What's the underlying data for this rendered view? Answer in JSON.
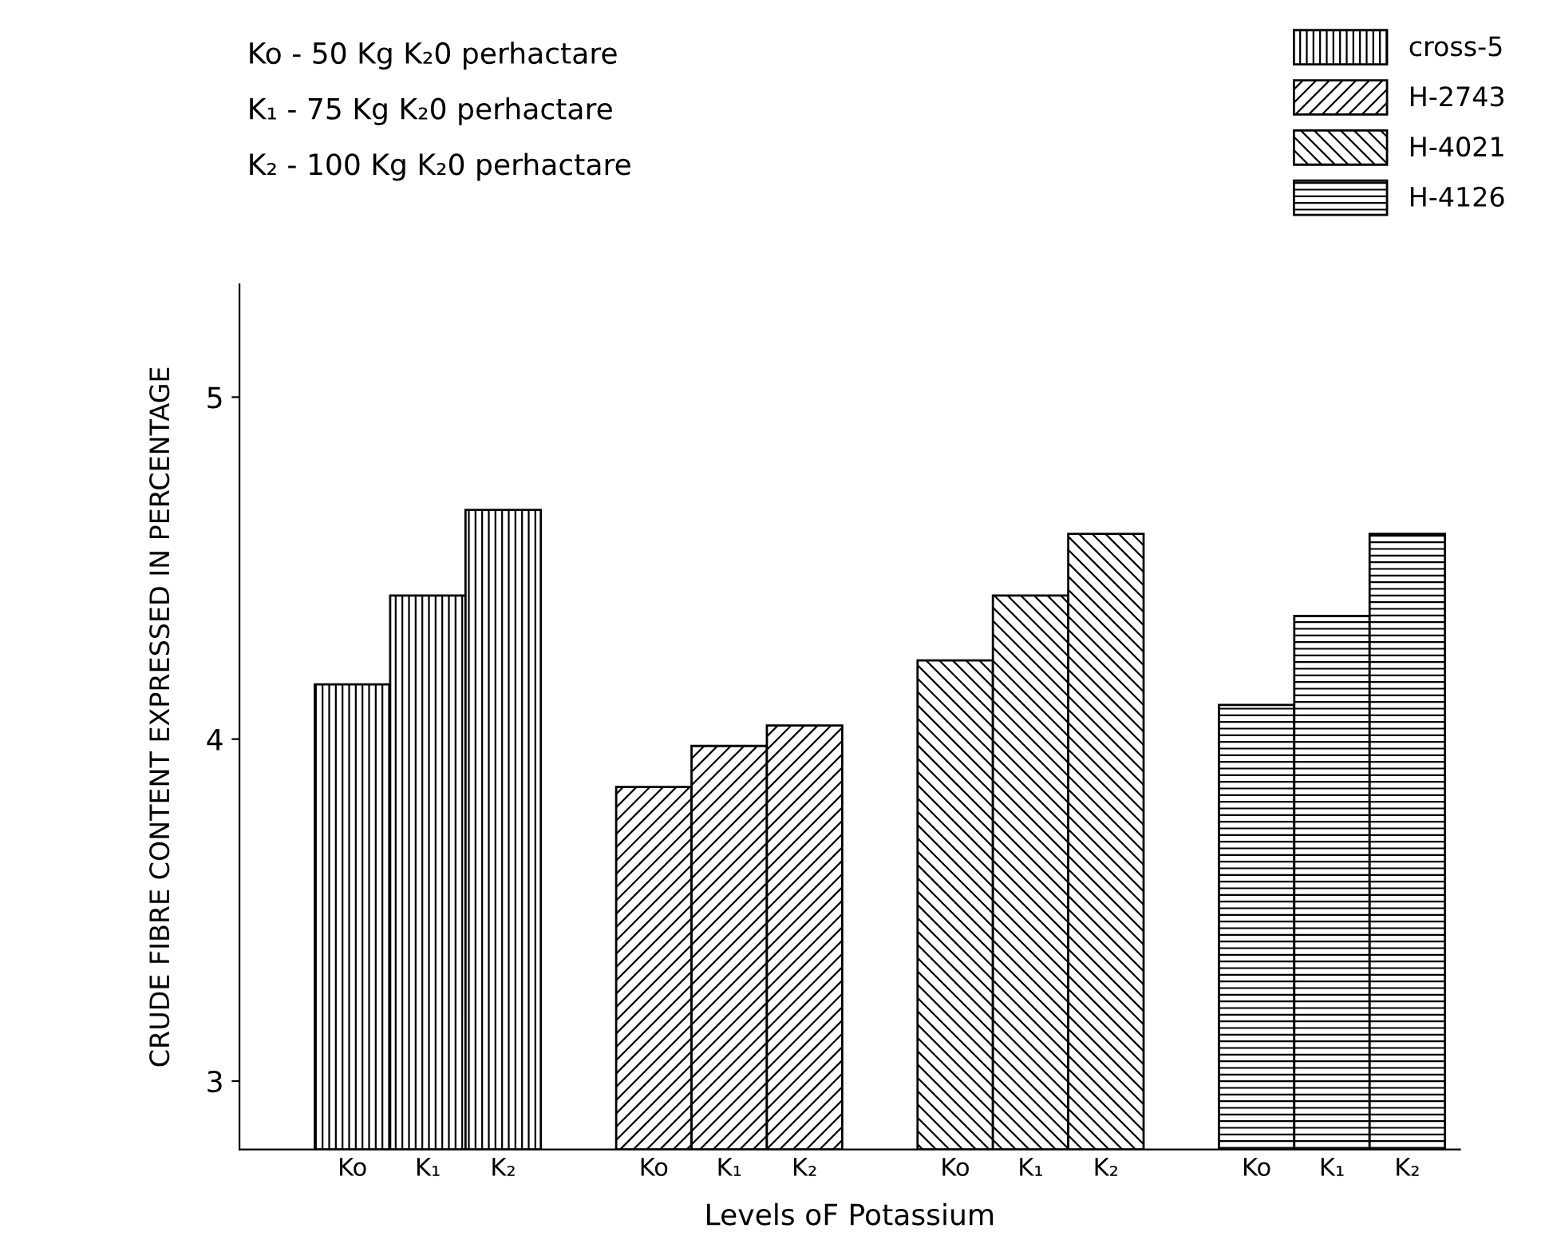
{
  "chart_data": {
    "type": "bar",
    "categories": [
      "Ko",
      "K₁",
      "K₂",
      null,
      "Ko",
      "K₁",
      "K₂",
      null,
      "Ko",
      "K₁",
      "K₂",
      null,
      "Ko",
      "K₁",
      "K₂"
    ],
    "series": [
      {
        "name": "cross-5",
        "color": "#000000",
        "values": [
          4.16,
          4.42,
          4.67,
          null,
          null,
          null,
          null,
          null,
          null,
          null,
          null,
          null,
          null,
          null,
          null
        ]
      },
      {
        "name": "H-2743",
        "color": "#000000",
        "values": [
          null,
          null,
          null,
          null,
          3.86,
          3.98,
          4.04,
          null,
          null,
          null,
          null,
          null,
          null,
          null,
          null
        ]
      },
      {
        "name": "H-4021",
        "color": "#000000",
        "values": [
          null,
          null,
          null,
          null,
          null,
          null,
          null,
          null,
          4.23,
          4.42,
          4.6,
          null,
          null,
          null,
          null
        ]
      },
      {
        "name": "H-4126",
        "color": "#000000",
        "values": [
          null,
          null,
          null,
          null,
          null,
          null,
          null,
          null,
          null,
          null,
          null,
          null,
          4.1,
          4.36,
          4.6
        ]
      }
    ],
    "ylim": [
      2.8,
      5.33
    ],
    "yticks": [
      3,
      4,
      5
    ],
    "xlabel": "Levels oF Potassium",
    "ylabel": "CRUDE FIBRE CONTENT EXPRESSED IN PERCENTAGE",
    "annotations": [
      "Ko - 50 Kg K₂0 perhactare",
      "K₁ - 75 Kg K₂0 perhactare",
      "K₂ - 100 Kg K₂0 perhactare"
    ],
    "legend": "top right",
    "grid": false
  }
}
